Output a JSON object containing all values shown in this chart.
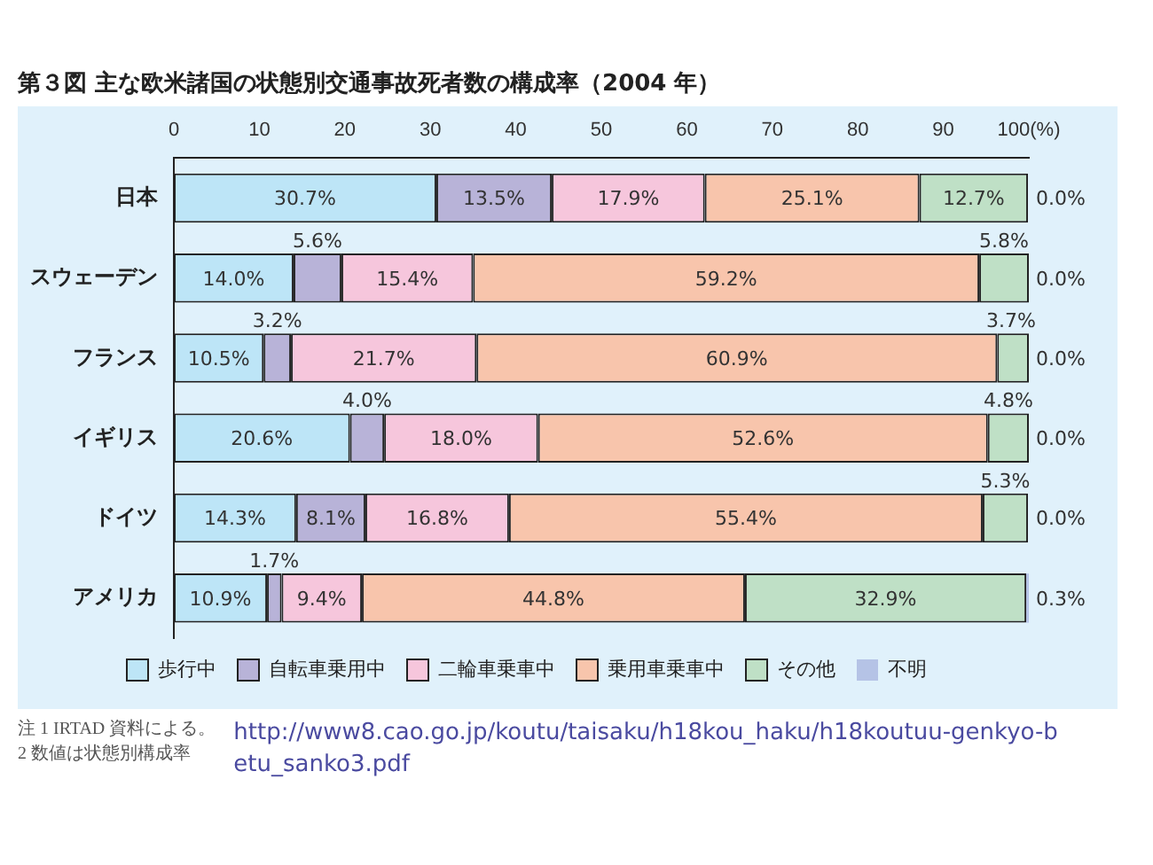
{
  "chart_data": {
    "type": "bar",
    "orientation": "horizontal",
    "stacked": true,
    "title": "第３図 主な欧米諸国の状態別交通事故死者数の構成率（2004 年）",
    "categories": [
      "日本",
      "スウェーデン",
      "フランス",
      "イギリス",
      "ドイツ",
      "アメリカ"
    ],
    "series": [
      {
        "name": "歩行中",
        "color": "#bde5f7",
        "values": [
          30.7,
          14.0,
          10.5,
          20.6,
          14.3,
          10.9
        ],
        "value_labels": [
          "30.7%",
          "14.0%",
          "10.5%",
          "20.6%",
          "14.3%",
          "10.9%"
        ]
      },
      {
        "name": "自転車乗用中",
        "color": "#b8b3d8",
        "values": [
          13.5,
          5.6,
          3.2,
          4.0,
          8.1,
          1.7
        ],
        "value_labels": [
          "13.5%",
          "5.6%",
          "3.2%",
          "4.0%",
          "8.1%",
          "1.7%"
        ]
      },
      {
        "name": "二輪車乗車中",
        "color": "#f6c6dc",
        "values": [
          17.9,
          15.4,
          21.7,
          18.0,
          16.8,
          9.4
        ],
        "value_labels": [
          "17.9%",
          "15.4%",
          "21.7%",
          "18.0%",
          "16.8%",
          "9.4%"
        ]
      },
      {
        "name": "乗用車乗車中",
        "color": "#f8c5ac",
        "values": [
          25.1,
          59.2,
          60.9,
          52.6,
          55.4,
          44.8
        ],
        "value_labels": [
          "25.1%",
          "59.2%",
          "60.9%",
          "52.6%",
          "55.4%",
          "44.8%"
        ]
      },
      {
        "name": "その他",
        "color": "#bfe0c6",
        "values": [
          12.7,
          5.8,
          3.7,
          4.8,
          5.3,
          32.9
        ],
        "value_labels": [
          "12.7%",
          "5.8%",
          "3.7%",
          "4.8%",
          "5.3%",
          "32.9%"
        ]
      },
      {
        "name": "不明",
        "color": "#b5c3e6",
        "values": [
          0.0,
          0.0,
          0.0,
          0.0,
          0.0,
          0.3
        ],
        "value_labels": [
          "0.0%",
          "0.0%",
          "0.0%",
          "0.0%",
          "0.0%",
          "0.3%"
        ]
      }
    ],
    "xlim": [
      0,
      100
    ],
    "xticks": [
      0,
      10,
      20,
      30,
      40,
      50,
      60,
      70,
      80,
      90,
      {
        "value": 100,
        "label": "100(%)"
      }
    ],
    "grid": false,
    "legend": "bottom",
    "annotations": [
      "注 1 IRTAD 資料による。",
      "2 数値は状態別構成率",
      "http://www8.cao.go.jp/koutu/taisaku/h18kou_haku/h18koutuu-genkyo-betu_sanko3.pdf"
    ]
  }
}
